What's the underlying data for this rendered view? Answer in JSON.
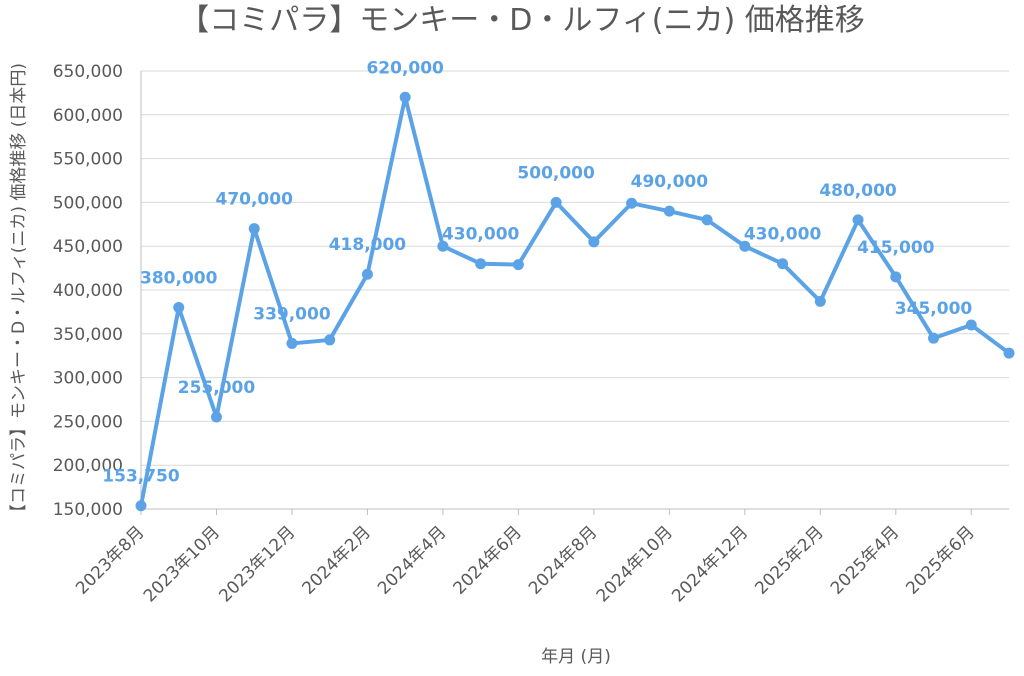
{
  "chart_data": {
    "type": "line",
    "title": "【コミパラ】モンキー・D・ルフィ(ニカ) 価格推移",
    "xlabel": "年月 (月)",
    "ylabel": "【コミパラ】モンキー・D・ルフィ(ニカ) 価格推移 (日本円)",
    "ylim": [
      150000,
      650000
    ],
    "yticks": [
      "150,000",
      "200,000",
      "250,000",
      "300,000",
      "350,000",
      "400,000",
      "450,000",
      "500,000",
      "550,000",
      "600,000",
      "650,000"
    ],
    "x": [
      "2023年8月",
      "2023年9月",
      "2023年10月",
      "2023年11月",
      "2023年12月",
      "2024年1月",
      "2024年2月",
      "2024年3月",
      "2024年4月",
      "2024年5月",
      "2024年6月",
      "2024年7月",
      "2024年8月",
      "2024年9月",
      "2024年10月",
      "2024年11月",
      "2024年12月",
      "2025年1月",
      "2025年2月",
      "2025年3月",
      "2025年4月",
      "2025年5月",
      "2025年6月",
      "2025年7月"
    ],
    "xtick_labels": [
      "2023年8月",
      "2023年10月",
      "2023年12月",
      "2024年2月",
      "2024年4月",
      "2024年6月",
      "2024年8月",
      "2024年10月",
      "2024年12月",
      "2025年2月",
      "2025年4月",
      "2025年6月"
    ],
    "series": [
      {
        "values": [
          153750,
          380000,
          255000,
          470000,
          339000,
          343000,
          418000,
          620000,
          450000,
          430000,
          429000,
          500000,
          455000,
          499000,
          490000,
          480000,
          450000,
          430000,
          387000,
          480000,
          415000,
          345000,
          360000,
          328000
        ],
        "data_labels": [
          {
            "index": 0,
            "text": "153,750"
          },
          {
            "index": 1,
            "text": "380,000"
          },
          {
            "index": 2,
            "text": "255,000"
          },
          {
            "index": 3,
            "text": "470,000"
          },
          {
            "index": 4,
            "text": "339,000"
          },
          {
            "index": 6,
            "text": "418,000"
          },
          {
            "index": 7,
            "text": "620,000"
          },
          {
            "index": 9,
            "text": "430,000"
          },
          {
            "index": 11,
            "text": "500,000"
          },
          {
            "index": 14,
            "text": "490,000"
          },
          {
            "index": 17,
            "text": "430,000"
          },
          {
            "index": 19,
            "text": "480,000"
          },
          {
            "index": 20,
            "text": "415,000"
          },
          {
            "index": 21,
            "text": "345,000"
          }
        ]
      }
    ],
    "color": "#5BA3E6",
    "grid": true,
    "legend": "none"
  }
}
